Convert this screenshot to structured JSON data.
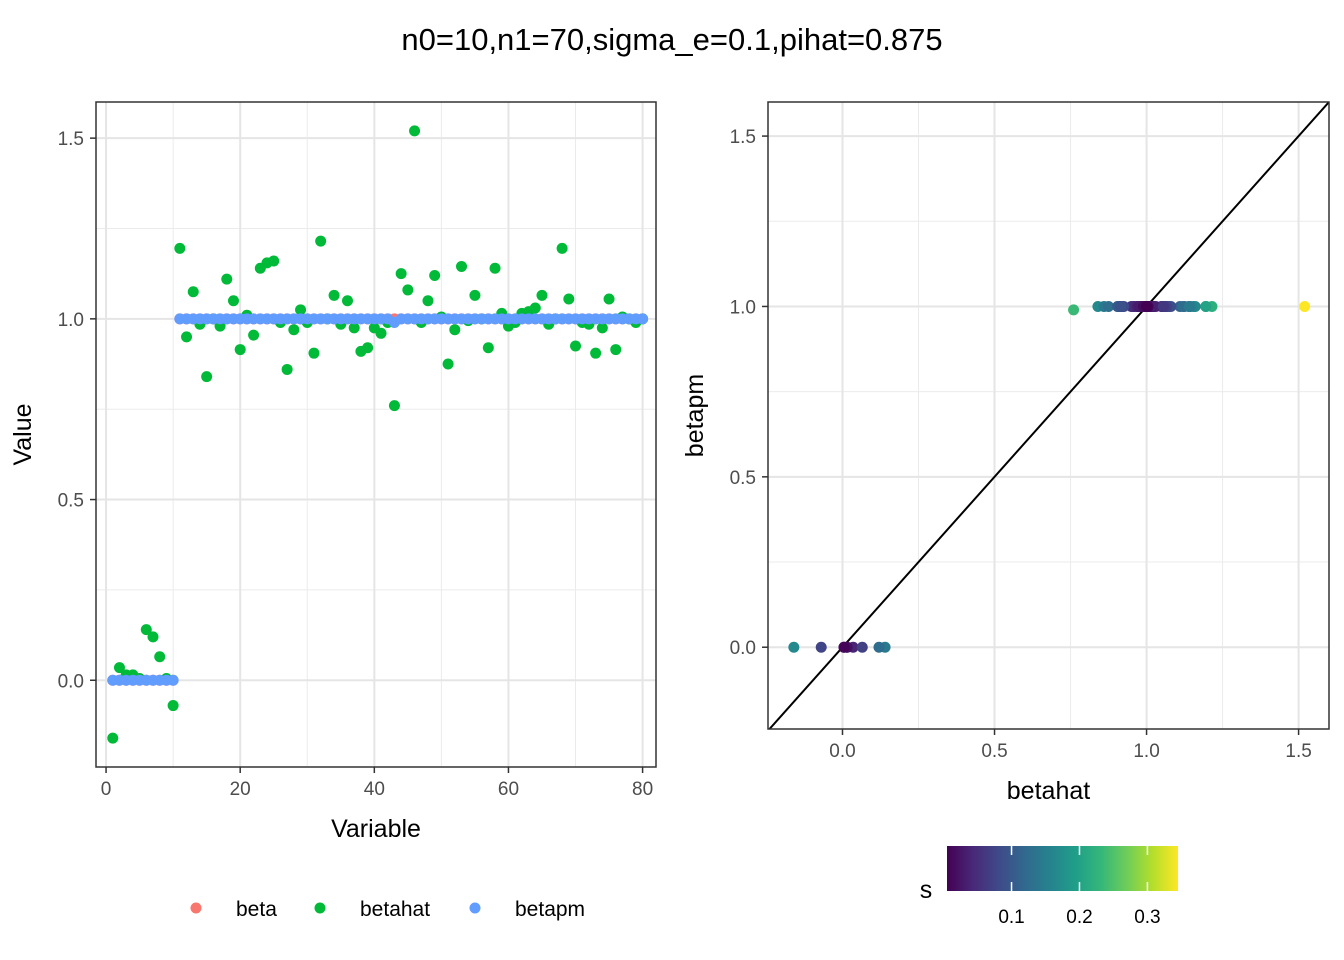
{
  "title": "n0=10,n1=70,sigma_e=0.1,pihat=0.875",
  "chart_data": [
    {
      "type": "scatter",
      "xlabel": "Variable",
      "ylabel": "Value",
      "xlim": [
        -1.5,
        82
      ],
      "ylim": [
        -0.24,
        1.6
      ],
      "xticks": [
        0,
        20,
        40,
        60,
        80
      ],
      "yticks": [
        0.0,
        0.5,
        1.0,
        1.5
      ],
      "ytick_labels": [
        "0.0",
        "0.5",
        "1.0",
        "1.5"
      ],
      "grid": true,
      "legend_position": "bottom",
      "legend": [
        {
          "name": "beta",
          "color": "#F8766D"
        },
        {
          "name": "betahat",
          "color": "#00BA38"
        },
        {
          "name": "betapm",
          "color": "#619CFF"
        }
      ],
      "series": [
        {
          "name": "beta",
          "color": "#F8766D",
          "x": [
            1,
            2,
            3,
            4,
            5,
            6,
            7,
            8,
            9,
            10,
            11,
            12,
            13,
            14,
            15,
            16,
            17,
            18,
            19,
            20,
            21,
            22,
            23,
            24,
            25,
            26,
            27,
            28,
            29,
            30,
            31,
            32,
            33,
            34,
            35,
            36,
            37,
            38,
            39,
            40,
            41,
            42,
            43,
            44,
            45,
            46,
            47,
            48,
            49,
            50,
            51,
            52,
            53,
            54,
            55,
            56,
            57,
            58,
            59,
            60,
            61,
            62,
            63,
            64,
            65,
            66,
            67,
            68,
            69,
            70,
            71,
            72,
            73,
            74,
            75,
            76,
            77,
            78,
            79,
            80
          ],
          "values": [
            0,
            0,
            0,
            0,
            0,
            0,
            0,
            0,
            0,
            0,
            1,
            1,
            1,
            1,
            1,
            1,
            1,
            1,
            1,
            1,
            1,
            1,
            1,
            1,
            1,
            1,
            1,
            1,
            1,
            1,
            1,
            1,
            1,
            1,
            1,
            1,
            1,
            1,
            1,
            1,
            1,
            1,
            1,
            1,
            1,
            1,
            1,
            1,
            1,
            1,
            1,
            1,
            1,
            1,
            1,
            1,
            1,
            1,
            1,
            1,
            1,
            1,
            1,
            1,
            1,
            1,
            1,
            1,
            1,
            1,
            1,
            1,
            1,
            1,
            1,
            1,
            1,
            1,
            1,
            1
          ]
        },
        {
          "name": "betahat",
          "color": "#00BA38",
          "x": [
            1,
            2,
            3,
            4,
            5,
            6,
            7,
            8,
            9,
            10,
            11,
            12,
            13,
            14,
            15,
            16,
            17,
            18,
            19,
            20,
            21,
            22,
            23,
            24,
            25,
            26,
            27,
            28,
            29,
            30,
            31,
            32,
            33,
            34,
            35,
            36,
            37,
            38,
            39,
            40,
            41,
            42,
            43,
            44,
            45,
            46,
            47,
            48,
            49,
            50,
            51,
            52,
            53,
            54,
            55,
            56,
            57,
            58,
            59,
            60,
            61,
            62,
            63,
            64,
            65,
            66,
            67,
            68,
            69,
            70,
            71,
            72,
            73,
            74,
            75,
            76,
            77,
            78,
            79,
            80
          ],
          "values": [
            -0.16,
            0.035,
            0.015,
            0.015,
            0.005,
            0.14,
            0.12,
            0.065,
            0.005,
            -0.07,
            1.195,
            0.95,
            1.075,
            0.985,
            0.84,
            1.0,
            0.98,
            1.11,
            1.05,
            0.915,
            1.01,
            0.955,
            1.14,
            1.155,
            1.16,
            0.99,
            0.86,
            0.97,
            1.025,
            0.99,
            0.905,
            1.215,
            1.0,
            1.065,
            0.985,
            1.05,
            0.975,
            0.91,
            0.92,
            0.975,
            0.96,
            0.99,
            0.76,
            1.125,
            1.08,
            1.52,
            0.99,
            1.05,
            1.12,
            1.005,
            0.875,
            0.97,
            1.145,
            0.995,
            1.065,
            1.0,
            0.92,
            1.14,
            1.015,
            0.98,
            0.99,
            1.015,
            1.02,
            1.03,
            1.065,
            0.985,
            1.0,
            1.195,
            1.055,
            0.925,
            0.99,
            0.985,
            0.905,
            0.975,
            1.055,
            0.915,
            1.005,
            1.0,
            0.99,
            1.0
          ]
        },
        {
          "name": "betapm",
          "color": "#619CFF",
          "x": [
            1,
            2,
            3,
            4,
            5,
            6,
            7,
            8,
            9,
            10,
            11,
            12,
            13,
            14,
            15,
            16,
            17,
            18,
            19,
            20,
            21,
            22,
            23,
            24,
            25,
            26,
            27,
            28,
            29,
            30,
            31,
            32,
            33,
            34,
            35,
            36,
            37,
            38,
            39,
            40,
            41,
            42,
            43,
            44,
            45,
            46,
            47,
            48,
            49,
            50,
            51,
            52,
            53,
            54,
            55,
            56,
            57,
            58,
            59,
            60,
            61,
            62,
            63,
            64,
            65,
            66,
            67,
            68,
            69,
            70,
            71,
            72,
            73,
            74,
            75,
            76,
            77,
            78,
            79,
            80
          ],
          "values": [
            0,
            0,
            0,
            0,
            0,
            0,
            0,
            0,
            0,
            0,
            1,
            1,
            1,
            1,
            1,
            1,
            1,
            1,
            1,
            1,
            1,
            1,
            1,
            1,
            1,
            1,
            1,
            1,
            1,
            1,
            1,
            1,
            1,
            1,
            1,
            1,
            1,
            1,
            1,
            1,
            1,
            1,
            0.99,
            1,
            1,
            1,
            1,
            1,
            1,
            1,
            1,
            1,
            1,
            1,
            1,
            1,
            1,
            1,
            1,
            1,
            1,
            1,
            1,
            1,
            1,
            1,
            1,
            1,
            1,
            1,
            1,
            1,
            1,
            1,
            1,
            1,
            1,
            1,
            1,
            1
          ]
        }
      ]
    },
    {
      "type": "scatter",
      "xlabel": "betahat",
      "ylabel": "betapm",
      "xlim": [
        -0.245,
        1.6
      ],
      "ylim": [
        -0.24,
        1.6
      ],
      "xticks": [
        0.0,
        0.5,
        1.0,
        1.5
      ],
      "xtick_labels": [
        "0.0",
        "0.5",
        "1.0",
        "1.5"
      ],
      "yticks": [
        0.0,
        0.5,
        1.0,
        1.5
      ],
      "ytick_labels": [
        "0.0",
        "0.5",
        "1.0",
        "1.5"
      ],
      "grid": true,
      "reference_line": "y = x",
      "color_variable": "s",
      "colorbar": {
        "title": "s",
        "range": [
          0.005,
          0.345
        ],
        "ticks": [
          0.1,
          0.2,
          0.3
        ],
        "tick_labels": [
          "0.1",
          "0.2",
          "0.3"
        ],
        "palette": [
          "#440154",
          "#482878",
          "#3E4A89",
          "#31688E",
          "#26828E",
          "#1F9E89",
          "#35B779",
          "#6DCD59",
          "#B4DE2C",
          "#FDE725"
        ],
        "legend_position": "bottom"
      },
      "points": {
        "betahat": [
          -0.16,
          0.035,
          0.015,
          0.015,
          0.005,
          0.14,
          0.12,
          0.065,
          0.005,
          -0.07,
          1.195,
          0.95,
          1.075,
          0.985,
          0.84,
          1.0,
          0.98,
          1.11,
          1.05,
          0.915,
          1.01,
          0.955,
          1.14,
          1.155,
          1.16,
          0.99,
          0.86,
          0.97,
          1.025,
          0.99,
          0.905,
          1.215,
          1.0,
          1.065,
          0.985,
          1.05,
          0.975,
          0.91,
          0.92,
          0.975,
          0.96,
          0.99,
          0.76,
          1.125,
          1.08,
          1.52,
          0.99,
          1.05,
          1.12,
          1.005,
          0.875,
          0.97,
          1.145,
          0.995,
          1.065,
          1.0,
          0.92,
          1.14,
          1.015,
          0.98,
          0.99,
          1.015,
          1.02,
          1.03,
          1.065,
          0.985,
          1.0,
          1.195,
          1.055,
          0.925,
          0.99,
          0.985,
          0.905,
          0.975,
          1.055,
          0.915,
          1.005,
          1.0,
          0.99,
          1.0
        ],
        "betapm": [
          0,
          0,
          0,
          0,
          0,
          0,
          0,
          0,
          0,
          0,
          1,
          1,
          1,
          1,
          1,
          1,
          1,
          1,
          1,
          1,
          1,
          1,
          1,
          1,
          1,
          1,
          1,
          1,
          1,
          1,
          1,
          1,
          1,
          1,
          1,
          1,
          1,
          1,
          1,
          1,
          1,
          1,
          0.99,
          1,
          1,
          1,
          1,
          1,
          1,
          1,
          1,
          1,
          1,
          1,
          1,
          1,
          1,
          1,
          1,
          1,
          1,
          1,
          1,
          1,
          1,
          1,
          1,
          1,
          1,
          1,
          1,
          1,
          1,
          1,
          1,
          1,
          1,
          1,
          1,
          1
        ]
      }
    }
  ]
}
